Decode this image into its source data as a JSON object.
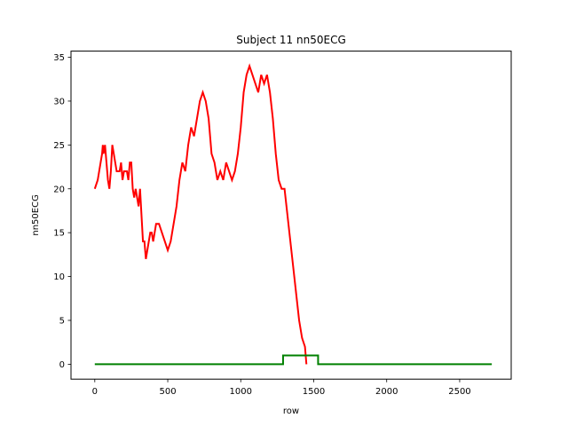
{
  "chart_data": {
    "type": "line",
    "title": "Subject 11 nn50ECG",
    "xlabel": "row",
    "ylabel": "nn50ECG",
    "xlim": [
      -163,
      2853
    ],
    "ylim": [
      -1.7,
      35.7
    ],
    "xticks": [
      0,
      500,
      1000,
      1500,
      2000,
      2500
    ],
    "yticks": [
      0,
      5,
      10,
      15,
      20,
      25,
      30,
      35
    ],
    "grid": false,
    "legend": "none",
    "series": [
      {
        "color": "#ff0000",
        "x": [
          0,
          20,
          30,
          40,
          50,
          55,
          60,
          70,
          80,
          90,
          100,
          110,
          120,
          130,
          140,
          150,
          160,
          170,
          180,
          190,
          200,
          210,
          220,
          230,
          240,
          250,
          260,
          270,
          280,
          290,
          300,
          310,
          320,
          330,
          340,
          350,
          360,
          370,
          380,
          390,
          400,
          420,
          440,
          460,
          480,
          500,
          520,
          540,
          560,
          580,
          600,
          620,
          640,
          660,
          680,
          700,
          720,
          740,
          760,
          780,
          800,
          820,
          840,
          860,
          880,
          900,
          920,
          940,
          960,
          980,
          1000,
          1020,
          1040,
          1060,
          1080,
          1100,
          1120,
          1140,
          1160,
          1180,
          1200,
          1220,
          1240,
          1260,
          1280,
          1300,
          1320,
          1340,
          1360,
          1380,
          1400,
          1420,
          1440,
          1450
        ],
        "y": [
          20,
          21,
          22,
          23,
          24,
          25,
          24,
          25,
          23,
          21,
          20,
          22,
          25,
          24,
          23,
          22,
          22,
          22,
          23,
          21,
          22,
          22,
          22,
          21,
          23,
          23,
          20,
          19,
          20,
          19,
          18,
          20,
          17,
          14,
          14,
          12,
          13,
          14,
          15,
          15,
          14,
          16,
          16,
          15,
          14,
          13,
          14,
          16,
          18,
          21,
          23,
          22,
          25,
          27,
          26,
          28,
          30,
          31,
          30,
          28,
          24,
          23,
          21,
          22,
          21,
          23,
          22,
          21,
          22,
          24,
          27,
          31,
          33,
          34,
          33,
          32,
          31,
          33,
          32,
          33,
          31,
          28,
          24,
          21,
          20,
          20,
          17,
          14,
          11,
          8,
          5,
          3,
          2,
          0
        ]
      },
      {
        "color": "#008000",
        "x": [
          0,
          1290,
          1290,
          1530,
          1530,
          2720
        ],
        "y": [
          0,
          0,
          1,
          1,
          0,
          0
        ]
      }
    ]
  }
}
